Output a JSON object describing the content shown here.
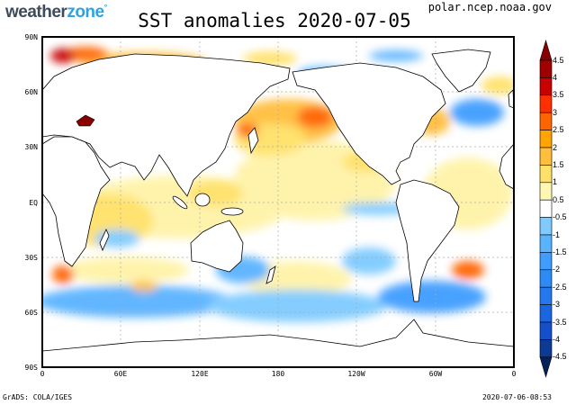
{
  "logo": {
    "part1": "weather",
    "part2": "zone",
    "mark": "°"
  },
  "source": "polar.ncep.noaa.gov",
  "title": "SST anomalies 2020-07-05",
  "lat_labels": [
    "90N",
    "60N",
    "30N",
    "EQ",
    "30S",
    "60S",
    "90S"
  ],
  "lon_labels": [
    "0",
    "60E",
    "120E",
    "180",
    "120W",
    "60W",
    "0"
  ],
  "colorbar": {
    "labels": [
      "4.5",
      "4",
      "3.5",
      "3",
      "2.5",
      "2",
      "1.5",
      "1",
      "0.5",
      "-0.5",
      "-1",
      "-1.5",
      "-2",
      "-2.5",
      "-3",
      "-3.5",
      "-4",
      "-4.5"
    ],
    "band_colors": [
      "#a00000",
      "#c80000",
      "#ff3000",
      "#ff6400",
      "#ffa400",
      "#ffbe3c",
      "#ffe168",
      "#fff7b2",
      "#ffffff",
      "#7fcbff",
      "#5ab3ff",
      "#3f9dff",
      "#2e8af5",
      "#2478ee",
      "#1a66e0",
      "#1450cc",
      "#0d3a94"
    ],
    "arrow_high_color": "#8a0000",
    "arrow_low_color": "#06205c"
  },
  "footer": {
    "left": "GrADS: COLA/IGES",
    "right": "2020-07-06-08:53"
  }
}
